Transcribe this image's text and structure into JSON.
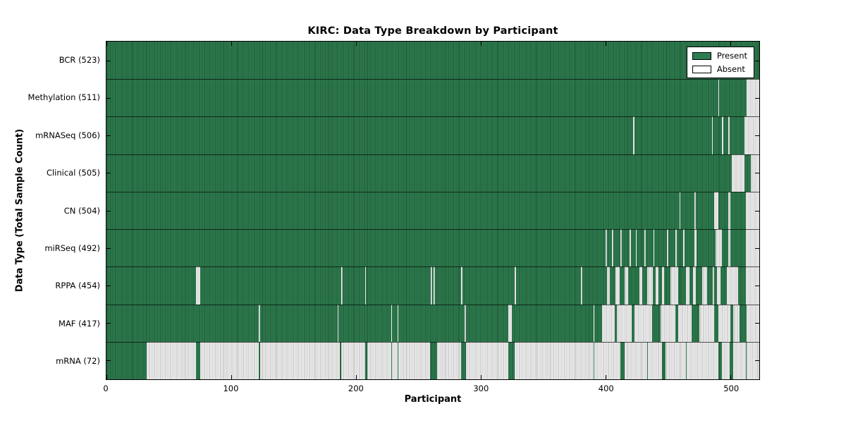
{
  "figure": {
    "background": "#ffffff"
  },
  "chart_data": {
    "type": "heatmap",
    "title": "KIRC: Data Type Breakdown by Participant",
    "xlabel": "Participant",
    "ylabel": "Data Type (Total Sample Count)",
    "legend": {
      "position": "upper right",
      "entries": [
        {
          "label": "Present",
          "color": "#2e7d4f"
        },
        {
          "label": "Absent",
          "color": "#ffffff"
        }
      ]
    },
    "colors": {
      "present_fill": "#2e7d4f",
      "present_edge": "#1d5434",
      "absent_fill": "#efefef",
      "absent_edge": "#b8b8b8",
      "frame": "#000000"
    },
    "x_range": [
      0,
      523
    ],
    "x_ticks": [
      0,
      100,
      200,
      300,
      400,
      500
    ],
    "grid": false,
    "rows": [
      {
        "label": "BCR (523)",
        "data_type": "BCR",
        "present_count": 523,
        "base": "present",
        "absent_ranges": []
      },
      {
        "label": "Methylation (511)",
        "data_type": "Methylation",
        "present_count": 511,
        "base": "present",
        "absent_ranges": [
          [
            490,
            490
          ],
          [
            513,
            523
          ]
        ]
      },
      {
        "label": "mRNASeq (506)",
        "data_type": "mRNASeq",
        "present_count": 506,
        "base": "present",
        "absent_ranges": [
          [
            422,
            422
          ],
          [
            485,
            485
          ],
          [
            493,
            493
          ],
          [
            498,
            498
          ],
          [
            511,
            523
          ]
        ]
      },
      {
        "label": "Clinical (505)",
        "data_type": "Clinical",
        "present_count": 505,
        "base": "present",
        "absent_ranges": [
          [
            501,
            510
          ],
          [
            516,
            523
          ]
        ]
      },
      {
        "label": "CN (504)",
        "data_type": "CN",
        "present_count": 504,
        "base": "present",
        "absent_ranges": [
          [
            459,
            459
          ],
          [
            471,
            471
          ],
          [
            487,
            489
          ],
          [
            498,
            499
          ],
          [
            512,
            523
          ]
        ]
      },
      {
        "label": "miRSeq (492)",
        "data_type": "miRSeq",
        "present_count": 492,
        "base": "present",
        "absent_ranges": [
          [
            400,
            400
          ],
          [
            405,
            405
          ],
          [
            412,
            412
          ],
          [
            419,
            419
          ],
          [
            424,
            424
          ],
          [
            431,
            431
          ],
          [
            438,
            438
          ],
          [
            449,
            449
          ],
          [
            456,
            456
          ],
          [
            462,
            462
          ],
          [
            471,
            472
          ],
          [
            488,
            492
          ],
          [
            498,
            499
          ],
          [
            512,
            523
          ]
        ]
      },
      {
        "label": "RPPA (454)",
        "data_type": "RPPA",
        "present_count": 454,
        "base": "present",
        "absent_ranges": [
          [
            72,
            74
          ],
          [
            188,
            188
          ],
          [
            207,
            207
          ],
          [
            260,
            260
          ],
          [
            262,
            262
          ],
          [
            284,
            284
          ],
          [
            327,
            327
          ],
          [
            380,
            380
          ],
          [
            401,
            402
          ],
          [
            408,
            410
          ],
          [
            415,
            417
          ],
          [
            427,
            428
          ],
          [
            433,
            437
          ],
          [
            440,
            441
          ],
          [
            445,
            446
          ],
          [
            452,
            457
          ],
          [
            464,
            466
          ],
          [
            470,
            471
          ],
          [
            477,
            480
          ],
          [
            486,
            486
          ],
          [
            489,
            491
          ],
          [
            497,
            505
          ],
          [
            512,
            523
          ]
        ]
      },
      {
        "label": "MAF (417)",
        "data_type": "MAF",
        "present_count": 417,
        "base": "present",
        "absent_ranges": [
          [
            122,
            122
          ],
          [
            185,
            185
          ],
          [
            228,
            228
          ],
          [
            233,
            233
          ],
          [
            287,
            287
          ],
          [
            322,
            324
          ],
          [
            390,
            390
          ],
          [
            397,
            406
          ],
          [
            409,
            420
          ],
          [
            423,
            436
          ],
          [
            444,
            455
          ],
          [
            458,
            468
          ],
          [
            475,
            486
          ],
          [
            490,
            499
          ],
          [
            502,
            506
          ],
          [
            513,
            523
          ]
        ]
      },
      {
        "label": "mRNA (72)",
        "data_type": "mRNA",
        "present_count": 72,
        "base": "absent",
        "present_ranges": [
          [
            0,
            31
          ],
          [
            72,
            74
          ],
          [
            122,
            122
          ],
          [
            187,
            187
          ],
          [
            207,
            208
          ],
          [
            228,
            228
          ],
          [
            233,
            233
          ],
          [
            259,
            264
          ],
          [
            284,
            287
          ],
          [
            322,
            326
          ],
          [
            390,
            390
          ],
          [
            412,
            414
          ],
          [
            433,
            433
          ],
          [
            445,
            447
          ],
          [
            464,
            464
          ],
          [
            490,
            492
          ],
          [
            499,
            501
          ],
          [
            512,
            512
          ]
        ]
      }
    ]
  }
}
